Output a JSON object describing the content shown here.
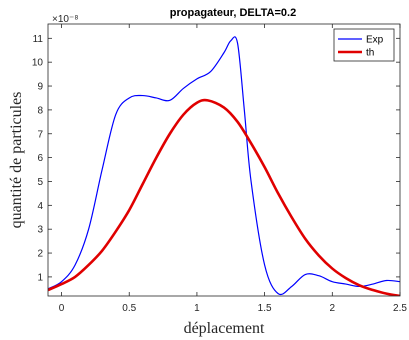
{
  "chart_data": {
    "type": "line",
    "title": "propagateur, DELTA=0.2",
    "xlabel": "déplacement",
    "ylabel": "quantité de particules",
    "y_exponent_label": "×10⁻⁸",
    "xlim": [
      -0.1,
      2.5
    ],
    "ylim": [
      0.2,
      11.6
    ],
    "x_ticks": [
      0,
      0.5,
      1,
      1.5,
      2,
      2.5
    ],
    "x_tick_labels": [
      "0",
      "0.5",
      "1",
      "1.5",
      "2",
      "2.5"
    ],
    "y_ticks": [
      1,
      2,
      3,
      4,
      5,
      6,
      7,
      8,
      9,
      10,
      11
    ],
    "y_tick_labels": [
      "1",
      "2",
      "3",
      "4",
      "5",
      "6",
      "7",
      "8",
      "9",
      "10",
      "11"
    ],
    "grid": false,
    "legend_position": "top-right",
    "series": [
      {
        "name": "Exp",
        "color": "#0000ff",
        "x": [
          -0.1,
          0,
          0.1,
          0.2,
          0.3,
          0.4,
          0.5,
          0.6,
          0.7,
          0.8,
          0.9,
          1.0,
          1.1,
          1.2,
          1.25,
          1.3,
          1.35,
          1.4,
          1.5,
          1.6,
          1.7,
          1.8,
          1.9,
          2.0,
          2.1,
          2.2,
          2.3,
          2.4,
          2.5
        ],
        "y": [
          0.5,
          0.8,
          1.5,
          3.0,
          5.5,
          7.8,
          8.5,
          8.6,
          8.5,
          8.4,
          8.9,
          9.3,
          9.6,
          10.4,
          10.9,
          10.8,
          8.0,
          5.0,
          1.5,
          0.3,
          0.6,
          1.1,
          1.05,
          0.8,
          0.7,
          0.6,
          0.7,
          0.85,
          0.8
        ]
      },
      {
        "name": "th",
        "color": "#e00000",
        "x": [
          -0.1,
          0,
          0.1,
          0.2,
          0.3,
          0.4,
          0.5,
          0.6,
          0.7,
          0.8,
          0.9,
          1.0,
          1.08,
          1.2,
          1.3,
          1.4,
          1.5,
          1.6,
          1.7,
          1.8,
          1.9,
          2.0,
          2.1,
          2.2,
          2.3,
          2.4,
          2.5
        ],
        "y": [
          0.45,
          0.7,
          1.0,
          1.5,
          2.1,
          2.9,
          3.8,
          4.9,
          6.0,
          7.0,
          7.8,
          8.3,
          8.4,
          8.1,
          7.5,
          6.6,
          5.6,
          4.5,
          3.5,
          2.6,
          1.9,
          1.35,
          0.95,
          0.65,
          0.45,
          0.3,
          0.2
        ]
      }
    ]
  }
}
